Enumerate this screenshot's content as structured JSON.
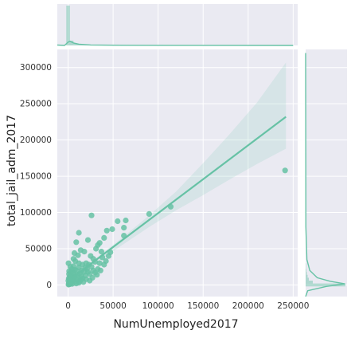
{
  "chart_data": {
    "type": "scatter",
    "xlabel": "NumUnemployed2017",
    "ylabel": "total_jail_adm_2017",
    "xlim": [
      -12000,
      255000
    ],
    "ylim": [
      -16000,
      325000
    ],
    "x_ticks": [
      0,
      50000,
      100000,
      150000,
      200000,
      250000
    ],
    "x_tick_labels": [
      "0",
      "50000",
      "100000",
      "150000",
      "200000",
      "250000"
    ],
    "y_ticks": [
      0,
      50000,
      100000,
      150000,
      200000,
      250000,
      300000
    ],
    "y_tick_labels": [
      "0",
      "50000",
      "100000",
      "150000",
      "200000",
      "250000",
      "300000"
    ],
    "grid": true,
    "marginal_histograms": true,
    "regression_line": {
      "x": [
        0,
        242000
      ],
      "y": [
        5500,
        232000
      ]
    },
    "confidence_band": {
      "x": [
        0,
        30000,
        60000,
        90000,
        120000,
        150000,
        180000,
        210000,
        242000
      ],
      "lower": [
        3000,
        29000,
        55000,
        80000,
        103000,
        124000,
        146000,
        167000,
        188000
      ],
      "upper": [
        8000,
        36000,
        65000,
        96000,
        129000,
        168000,
        209000,
        252000,
        307000
      ]
    },
    "x_hist": {
      "bin_edges": [
        -2000,
        2000,
        6000,
        10000,
        14000,
        18000,
        22000,
        26000,
        30000,
        34000
      ],
      "counts": [
        100,
        12,
        6,
        4,
        3,
        2,
        2,
        1,
        1
      ]
    },
    "y_hist": {
      "bin_edges": [
        -2000,
        2000,
        6000,
        10000,
        14000,
        18000,
        22000,
        26000,
        30000
      ],
      "counts": [
        100,
        18,
        8,
        5,
        3,
        2,
        1,
        1
      ]
    },
    "points": [
      {
        "x": 241000,
        "y": 158000
      },
      {
        "x": 114000,
        "y": 108000
      },
      {
        "x": 90000,
        "y": 98000
      },
      {
        "x": 64000,
        "y": 89000
      },
      {
        "x": 55000,
        "y": 88000
      },
      {
        "x": 62000,
        "y": 79000
      },
      {
        "x": 49000,
        "y": 77000
      },
      {
        "x": 43000,
        "y": 75000
      },
      {
        "x": 62000,
        "y": 68000
      },
      {
        "x": 26000,
        "y": 96000
      },
      {
        "x": 40000,
        "y": 65000
      },
      {
        "x": 35000,
        "y": 58000
      },
      {
        "x": 33000,
        "y": 55000
      },
      {
        "x": 31000,
        "y": 50000
      },
      {
        "x": 37000,
        "y": 46000
      },
      {
        "x": 12000,
        "y": 72000
      },
      {
        "x": 22000,
        "y": 62000
      },
      {
        "x": 9000,
        "y": 59000
      },
      {
        "x": 14000,
        "y": 48000
      },
      {
        "x": 18000,
        "y": 46000
      },
      {
        "x": 7000,
        "y": 44000
      },
      {
        "x": 11000,
        "y": 41000
      },
      {
        "x": 25000,
        "y": 40000
      },
      {
        "x": 28000,
        "y": 36000
      },
      {
        "x": 38000,
        "y": 38000
      },
      {
        "x": 30000,
        "y": 32000
      },
      {
        "x": 20000,
        "y": 30000
      },
      {
        "x": 16000,
        "y": 28000
      },
      {
        "x": 8000,
        "y": 33000
      },
      {
        "x": 35000,
        "y": 30000
      },
      {
        "x": 45000,
        "y": 40000
      },
      {
        "x": 26000,
        "y": 25000
      },
      {
        "x": 21000,
        "y": 22000
      },
      {
        "x": 12000,
        "y": 24000
      },
      {
        "x": 6000,
        "y": 26000
      },
      {
        "x": 33000,
        "y": 22000
      },
      {
        "x": 40000,
        "y": 28000
      },
      {
        "x": 18000,
        "y": 18000
      },
      {
        "x": 13000,
        "y": 16000
      },
      {
        "x": 24000,
        "y": 15000
      },
      {
        "x": 30000,
        "y": 17000
      },
      {
        "x": 9000,
        "y": 20000
      },
      {
        "x": 4000,
        "y": 22000
      },
      {
        "x": 15000,
        "y": 12000
      },
      {
        "x": 27000,
        "y": 10000
      },
      {
        "x": 20000,
        "y": 8000
      },
      {
        "x": 11000,
        "y": 10000
      },
      {
        "x": 6000,
        "y": 14000
      },
      {
        "x": 3000,
        "y": 18000
      },
      {
        "x": 2000,
        "y": 12000
      },
      {
        "x": 1500,
        "y": 8000
      },
      {
        "x": 5000,
        "y": 6000
      },
      {
        "x": 8000,
        "y": 4000
      },
      {
        "x": 3000,
        "y": 3000
      },
      {
        "x": 1000,
        "y": 1000
      },
      {
        "x": 500,
        "y": 500
      },
      {
        "x": 2000,
        "y": 5000
      },
      {
        "x": 4000,
        "y": 9000
      },
      {
        "x": 7000,
        "y": 11000
      },
      {
        "x": 10000,
        "y": 7000
      },
      {
        "x": 13000,
        "y": 5000
      },
      {
        "x": 16000,
        "y": 9000
      },
      {
        "x": 19000,
        "y": 13000
      },
      {
        "x": 22000,
        "y": 18000
      },
      {
        "x": 24000,
        "y": 6000
      },
      {
        "x": 1000,
        "y": 15000
      },
      {
        "x": 2500,
        "y": 25000
      },
      {
        "x": 500,
        "y": 30000
      },
      {
        "x": 6000,
        "y": 36000
      },
      {
        "x": 3000,
        "y": 2000
      },
      {
        "x": 1500,
        "y": 4000
      },
      {
        "x": 800,
        "y": 2500
      },
      {
        "x": 4500,
        "y": 1500
      },
      {
        "x": 9000,
        "y": 2000
      },
      {
        "x": 12000,
        "y": 3000
      },
      {
        "x": 14000,
        "y": 7000
      },
      {
        "x": 17000,
        "y": 4000
      },
      {
        "x": 6000,
        "y": 8000
      },
      {
        "x": 2000,
        "y": 1000
      },
      {
        "x": 300,
        "y": 6000
      },
      {
        "x": 700,
        "y": 9000
      },
      {
        "x": 1200,
        "y": 19000
      },
      {
        "x": 3500,
        "y": 13000
      },
      {
        "x": 5500,
        "y": 17000
      },
      {
        "x": 10500,
        "y": 14000
      },
      {
        "x": 7500,
        "y": 21000
      },
      {
        "x": 15000,
        "y": 20000
      },
      {
        "x": 19000,
        "y": 24000
      },
      {
        "x": 23000,
        "y": 28000
      },
      {
        "x": 12000,
        "y": 30000
      },
      {
        "x": 28000,
        "y": 20000
      },
      {
        "x": 32000,
        "y": 14000
      },
      {
        "x": 36000,
        "y": 20000
      },
      {
        "x": 42000,
        "y": 33000
      },
      {
        "x": 47000,
        "y": 45000
      }
    ]
  }
}
